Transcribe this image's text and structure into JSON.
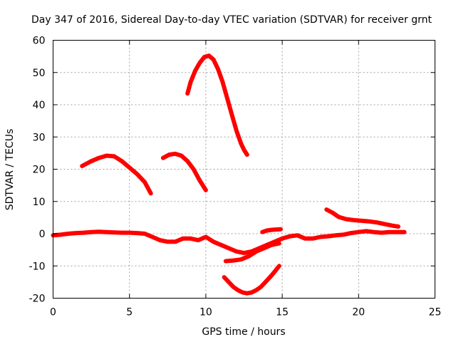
{
  "chart_data": {
    "type": "line",
    "title": "Day 347 of 2016, Sidereal Day-to-day VTEC variation (SDTVAR) for receiver grnt",
    "xlabel": "GPS time / hours",
    "ylabel": "SDTVAR / TECUs",
    "xlim": [
      0,
      25
    ],
    "ylim": [
      -20,
      60
    ],
    "xticks": [
      0,
      5,
      10,
      15,
      20,
      25
    ],
    "yticks": [
      -20,
      -10,
      0,
      10,
      20,
      30,
      40,
      50,
      60
    ],
    "grid": true,
    "color": "#ff0000",
    "series": [
      {
        "name": "baseline",
        "x": [
          0.0,
          0.5,
          1.0,
          1.5,
          2.0,
          2.5,
          3.0,
          3.5,
          4.0,
          4.5,
          5.0,
          5.5,
          6.0,
          6.5,
          7.0,
          7.5,
          8.0,
          8.5,
          9.0,
          9.5,
          10.0,
          10.5,
          11.0,
          11.5,
          12.0,
          12.5,
          13.0,
          13.5,
          14.0,
          14.5,
          15.0,
          15.5,
          16.0,
          16.5,
          17.0,
          17.5,
          18.0,
          18.5,
          19.0,
          19.5,
          20.0,
          20.5,
          21.0,
          21.5,
          22.0,
          22.5,
          23.0
        ],
        "y": [
          -0.5,
          -0.3,
          0.0,
          0.2,
          0.3,
          0.5,
          0.6,
          0.5,
          0.4,
          0.3,
          0.3,
          0.2,
          0.0,
          -1.0,
          -2.0,
          -2.5,
          -2.5,
          -1.5,
          -1.5,
          -2.0,
          -1.0,
          -2.5,
          -3.5,
          -4.5,
          -5.5,
          -6.0,
          -5.5,
          -4.5,
          -3.5,
          -2.5,
          -1.5,
          -0.8,
          -0.5,
          -1.5,
          -1.5,
          -1.0,
          -0.8,
          -0.5,
          -0.3,
          0.2,
          0.5,
          0.8,
          0.5,
          0.3,
          0.5,
          0.5,
          0.5
        ]
      },
      {
        "name": "arc-2-6",
        "x": [
          1.9,
          2.5,
          3.0,
          3.5,
          4.0,
          4.5,
          5.0,
          5.5,
          6.0,
          6.4
        ],
        "y": [
          21,
          22.5,
          23.5,
          24.2,
          24.0,
          22.5,
          20.5,
          18.5,
          16.0,
          12.5
        ]
      },
      {
        "name": "arc-7-10",
        "x": [
          7.2,
          7.6,
          8.0,
          8.4,
          8.8,
          9.2,
          9.6,
          10.0
        ],
        "y": [
          23.5,
          24.5,
          24.8,
          24.2,
          22.5,
          20.0,
          16.5,
          13.5
        ]
      },
      {
        "name": "peak-arc",
        "x": [
          8.8,
          9.0,
          9.3,
          9.6,
          9.9,
          10.2,
          10.5,
          10.8,
          11.1,
          11.4,
          11.7,
          12.0,
          12.3,
          12.5,
          12.7
        ],
        "y": [
          43.5,
          47.0,
          50.5,
          53.0,
          54.8,
          55.2,
          54.0,
          51.0,
          47.0,
          42.0,
          37.0,
          32.0,
          28.0,
          26.0,
          24.5
        ]
      },
      {
        "name": "arc-11-14",
        "x": [
          11.3,
          11.8,
          12.3,
          12.8,
          13.3,
          13.8,
          14.3,
          14.8
        ],
        "y": [
          -8.5,
          -8.3,
          -8.0,
          -7.0,
          -5.5,
          -4.5,
          -3.5,
          -3.0
        ]
      },
      {
        "name": "dip-arc",
        "x": [
          11.2,
          11.5,
          11.8,
          12.1,
          12.4,
          12.7,
          13.0,
          13.3,
          13.6,
          13.9,
          14.2,
          14.5,
          14.8
        ],
        "y": [
          -13.5,
          -15.0,
          -16.5,
          -17.5,
          -18.2,
          -18.5,
          -18.2,
          -17.5,
          -16.5,
          -15.0,
          -13.5,
          -11.8,
          -10.0
        ]
      },
      {
        "name": "segment-14-15",
        "x": [
          13.7,
          14.0,
          14.3,
          14.6,
          14.9
        ],
        "y": [
          0.5,
          1.0,
          1.2,
          1.3,
          1.4
        ]
      },
      {
        "name": "arc-18-22",
        "x": [
          17.9,
          18.3,
          18.7,
          19.2,
          19.7,
          20.2,
          20.7,
          21.2,
          21.7,
          22.2,
          22.6
        ],
        "y": [
          7.5,
          6.5,
          5.2,
          4.5,
          4.2,
          4.0,
          3.8,
          3.5,
          3.0,
          2.5,
          2.2
        ]
      }
    ]
  }
}
